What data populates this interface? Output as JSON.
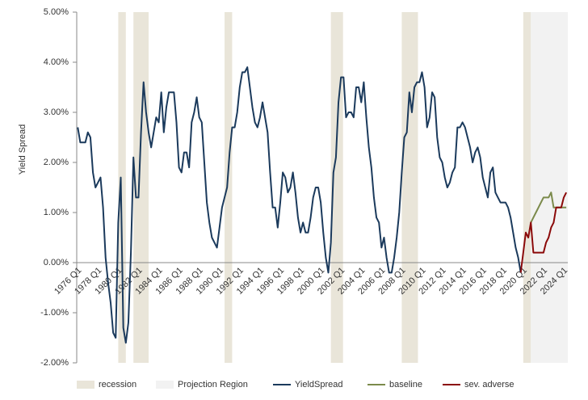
{
  "chart_data": {
    "type": "line",
    "y_label": "Yield Spread",
    "xlim": [
      1975.9,
      2024.4
    ],
    "ylim": [
      -2,
      5
    ],
    "yticks": [
      {
        "value": 5,
        "label": "5.00%"
      },
      {
        "value": 4,
        "label": "4.00%"
      },
      {
        "value": 3,
        "label": "3.00%"
      },
      {
        "value": 2,
        "label": "2.00%"
      },
      {
        "value": 1,
        "label": "1.00%"
      },
      {
        "value": 0,
        "label": "0.00%"
      },
      {
        "value": -1,
        "label": "-1.00%"
      },
      {
        "value": -2,
        "label": "-2.00%"
      }
    ],
    "xticks": [
      {
        "value": 1976,
        "label": "1976 Q1"
      },
      {
        "value": 1978,
        "label": "1978 Q1"
      },
      {
        "value": 1980,
        "label": "1980 Q1"
      },
      {
        "value": 1982,
        "label": "1982 Q1"
      },
      {
        "value": 1984,
        "label": "1984 Q1"
      },
      {
        "value": 1986,
        "label": "1986 Q1"
      },
      {
        "value": 1988,
        "label": "1988 Q1"
      },
      {
        "value": 1990,
        "label": "1990 Q1"
      },
      {
        "value": 1992,
        "label": "1992 Q1"
      },
      {
        "value": 1994,
        "label": "1994 Q1"
      },
      {
        "value": 1996,
        "label": "1996 Q1"
      },
      {
        "value": 1998,
        "label": "1998 Q1"
      },
      {
        "value": 2000,
        "label": "2000 Q1"
      },
      {
        "value": 2002,
        "label": "2002 Q1"
      },
      {
        "value": 2004,
        "label": "2004 Q1"
      },
      {
        "value": 2006,
        "label": "2006 Q1"
      },
      {
        "value": 2008,
        "label": "2008 Q1"
      },
      {
        "value": 2010,
        "label": "2010 Q1"
      },
      {
        "value": 2012,
        "label": "2012 Q1"
      },
      {
        "value": 2014,
        "label": "2014 Q1"
      },
      {
        "value": 2016,
        "label": "2016 Q1"
      },
      {
        "value": 2018,
        "label": "2018 Q1"
      },
      {
        "value": 2020,
        "label": "2020 Q1"
      },
      {
        "value": 2022,
        "label": "2022 Q1"
      },
      {
        "value": 2024,
        "label": "2024 Q1"
      }
    ],
    "shaded": [
      {
        "name": "recession",
        "color": "#e9e5d9",
        "spans": [
          [
            1980,
            1980.75
          ],
          [
            1981.5,
            1983
          ],
          [
            1990.5,
            1991.25
          ],
          [
            2001,
            2002.2
          ],
          [
            2008,
            2009.6
          ],
          [
            2020,
            2020.75
          ]
        ]
      },
      {
        "name": "Projection Region",
        "color": "#f2f2f2",
        "spans": [
          [
            2020.75,
            2024.4
          ]
        ]
      }
    ],
    "series": [
      {
        "name": "YieldSpread",
        "color": "#1b3a5c",
        "x": [
          1976,
          1976.25,
          1976.5,
          1976.75,
          1977,
          1977.25,
          1977.5,
          1977.75,
          1978,
          1978.25,
          1978.5,
          1978.75,
          1979,
          1979.25,
          1979.5,
          1979.75,
          1980,
          1980.25,
          1980.5,
          1980.75,
          1981,
          1981.25,
          1981.5,
          1981.75,
          1982,
          1982.25,
          1982.5,
          1982.75,
          1983,
          1983.25,
          1983.5,
          1983.75,
          1984,
          1984.25,
          1984.5,
          1984.75,
          1985,
          1985.25,
          1985.5,
          1985.75,
          1986,
          1986.25,
          1986.5,
          1986.75,
          1987,
          1987.25,
          1987.5,
          1987.75,
          1988,
          1988.25,
          1988.5,
          1988.75,
          1989,
          1989.25,
          1989.5,
          1989.75,
          1990,
          1990.25,
          1990.5,
          1990.75,
          1991,
          1991.25,
          1991.5,
          1991.75,
          1992,
          1992.25,
          1992.5,
          1992.75,
          1993,
          1993.25,
          1993.5,
          1993.75,
          1994,
          1994.25,
          1994.5,
          1994.75,
          1995,
          1995.25,
          1995.5,
          1995.75,
          1996,
          1996.25,
          1996.5,
          1996.75,
          1997,
          1997.25,
          1997.5,
          1997.75,
          1998,
          1998.25,
          1998.5,
          1998.75,
          1999,
          1999.25,
          1999.5,
          1999.75,
          2000,
          2000.25,
          2000.5,
          2000.75,
          2001,
          2001.25,
          2001.5,
          2001.75,
          2002,
          2002.25,
          2002.5,
          2002.75,
          2003,
          2003.25,
          2003.5,
          2003.75,
          2004,
          2004.25,
          2004.5,
          2004.75,
          2005,
          2005.25,
          2005.5,
          2005.75,
          2006,
          2006.25,
          2006.5,
          2006.75,
          2007,
          2007.25,
          2007.5,
          2007.75,
          2008,
          2008.25,
          2008.5,
          2008.75,
          2009,
          2009.25,
          2009.5,
          2009.75,
          2010,
          2010.25,
          2010.5,
          2010.75,
          2011,
          2011.25,
          2011.5,
          2011.75,
          2012,
          2012.25,
          2012.5,
          2012.75,
          2013,
          2013.25,
          2013.5,
          2013.75,
          2014,
          2014.25,
          2014.5,
          2014.75,
          2015,
          2015.25,
          2015.5,
          2015.75,
          2016,
          2016.25,
          2016.5,
          2016.75,
          2017,
          2017.25,
          2017.5,
          2017.75,
          2018,
          2018.25,
          2018.5,
          2018.75,
          2019,
          2019.25,
          2019.5,
          2019.75
        ],
        "values": [
          2.7,
          2.4,
          2.4,
          2.4,
          2.6,
          2.5,
          1.8,
          1.5,
          1.6,
          1.7,
          1.1,
          0.1,
          -0.4,
          -0.8,
          -1.4,
          -1.5,
          0.8,
          1.7,
          -1.3,
          -1.6,
          -1.2,
          0.2,
          2.1,
          1.3,
          1.3,
          2.6,
          3.6,
          3.0,
          2.6,
          2.3,
          2.6,
          2.9,
          2.8,
          3.4,
          2.6,
          3.1,
          3.4,
          3.4,
          3.4,
          2.8,
          1.9,
          1.8,
          2.2,
          2.2,
          1.9,
          2.8,
          3.0,
          3.3,
          2.9,
          2.8,
          2.0,
          1.2,
          0.8,
          0.5,
          0.4,
          0.3,
          0.7,
          1.1,
          1.3,
          1.5,
          2.2,
          2.7,
          2.7,
          3.0,
          3.5,
          3.8,
          3.8,
          3.9,
          3.5,
          3.1,
          2.8,
          2.7,
          2.9,
          3.2,
          2.9,
          2.6,
          1.8,
          1.1,
          1.1,
          0.7,
          1.2,
          1.8,
          1.7,
          1.4,
          1.5,
          1.8,
          1.4,
          0.9,
          0.6,
          0.8,
          0.6,
          0.6,
          0.9,
          1.3,
          1.5,
          1.5,
          1.2,
          0.6,
          0.1,
          -0.2,
          0.4,
          1.8,
          2.1,
          3.2,
          3.7,
          3.7,
          2.9,
          3.0,
          3.0,
          2.9,
          3.5,
          3.5,
          3.2,
          3.6,
          2.9,
          2.3,
          1.9,
          1.3,
          0.9,
          0.8,
          0.3,
          0.5,
          0.1,
          -0.2,
          -0.2,
          0.1,
          0.5,
          1.0,
          1.8,
          2.5,
          2.6,
          3.4,
          3.0,
          3.5,
          3.6,
          3.6,
          3.8,
          3.5,
          2.7,
          2.9,
          3.4,
          3.3,
          2.5,
          2.1,
          2.0,
          1.7,
          1.5,
          1.6,
          1.8,
          1.9,
          2.7,
          2.7,
          2.8,
          2.7,
          2.5,
          2.3,
          2.0,
          2.2,
          2.3,
          2.1,
          1.7,
          1.5,
          1.3,
          1.8,
          1.9,
          1.4,
          1.3,
          1.2,
          1.2,
          1.2,
          1.1,
          0.9,
          0.6,
          0.3,
          0.1,
          -0.2
        ]
      },
      {
        "name": "baseline",
        "color": "#7b8a4b",
        "x": [
          2020.75,
          2021,
          2021.25,
          2021.5,
          2021.75,
          2022,
          2022.25,
          2022.5,
          2022.75,
          2023,
          2023.25,
          2023.5,
          2023.75,
          2024,
          2024.25
        ],
        "values": [
          0.8,
          0.9,
          1.0,
          1.1,
          1.2,
          1.3,
          1.3,
          1.3,
          1.4,
          1.1,
          1.1,
          1.1,
          1.1,
          1.1,
          1.1
        ]
      },
      {
        "name": "sev. adverse",
        "color": "#8b0a0a",
        "x": [
          2019.75,
          2020,
          2020.25,
          2020.5,
          2020.75,
          2021,
          2021.25,
          2021.5,
          2021.75,
          2022,
          2022.25,
          2022.5,
          2022.75,
          2023,
          2023.25,
          2023.5,
          2023.75,
          2024,
          2024.25
        ],
        "values": [
          -0.2,
          0.2,
          0.6,
          0.5,
          0.8,
          0.2,
          0.2,
          0.2,
          0.2,
          0.2,
          0.4,
          0.5,
          0.7,
          0.8,
          1.1,
          1.1,
          1.1,
          1.3,
          1.4
        ]
      }
    ]
  }
}
